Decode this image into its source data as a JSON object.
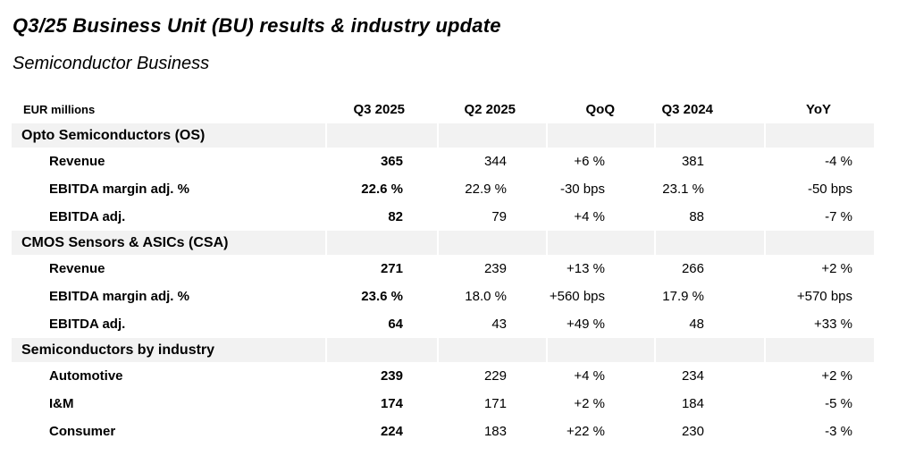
{
  "slide": {
    "title": "Q3/25 Business Unit (BU) results & industry update",
    "subtitle": "Semiconductor Business"
  },
  "table": {
    "units_label": "EUR millions",
    "columns": [
      "Q3 2025",
      "Q2 2025",
      "QoQ",
      "Q3 2024",
      "YoY"
    ],
    "sections": [
      {
        "title": "Opto Semiconductors (OS)",
        "rows": [
          {
            "label": "Revenue",
            "values": [
              "365",
              "344",
              "+6 %",
              "381",
              "-4 %"
            ]
          },
          {
            "label": "EBITDA margin adj. %",
            "values": [
              "22.6 %",
              "22.9 %",
              "-30 bps",
              "23.1 %",
              "-50 bps"
            ]
          },
          {
            "label": "EBITDA adj.",
            "values": [
              "82",
              "79",
              "+4 %",
              "88",
              "-7 %"
            ]
          }
        ]
      },
      {
        "title": "CMOS Sensors & ASICs (CSA)",
        "rows": [
          {
            "label": "Revenue",
            "values": [
              "271",
              "239",
              "+13 %",
              "266",
              "+2 %"
            ]
          },
          {
            "label": "EBITDA margin adj. %",
            "values": [
              "23.6 %",
              "18.0 %",
              "+560 bps",
              "17.9 %",
              "+570 bps"
            ]
          },
          {
            "label": "EBITDA adj.",
            "values": [
              "64",
              "43",
              "+49 %",
              "48",
              "+33 %"
            ]
          }
        ]
      },
      {
        "title": "Semiconductors by industry",
        "rows": [
          {
            "label": "Automotive",
            "values": [
              "239",
              "229",
              "+4 %",
              "234",
              "+2 %"
            ]
          },
          {
            "label": "I&M",
            "values": [
              "174",
              "171",
              "+2 %",
              "184",
              "-5 %"
            ]
          },
          {
            "label": "Consumer",
            "values": [
              "224",
              "183",
              "+22 %",
              "230",
              "-3 %"
            ]
          }
        ]
      }
    ],
    "colors": {
      "section_row_bg": "#f2f2f2",
      "text": "#000000",
      "background": "#ffffff"
    }
  }
}
